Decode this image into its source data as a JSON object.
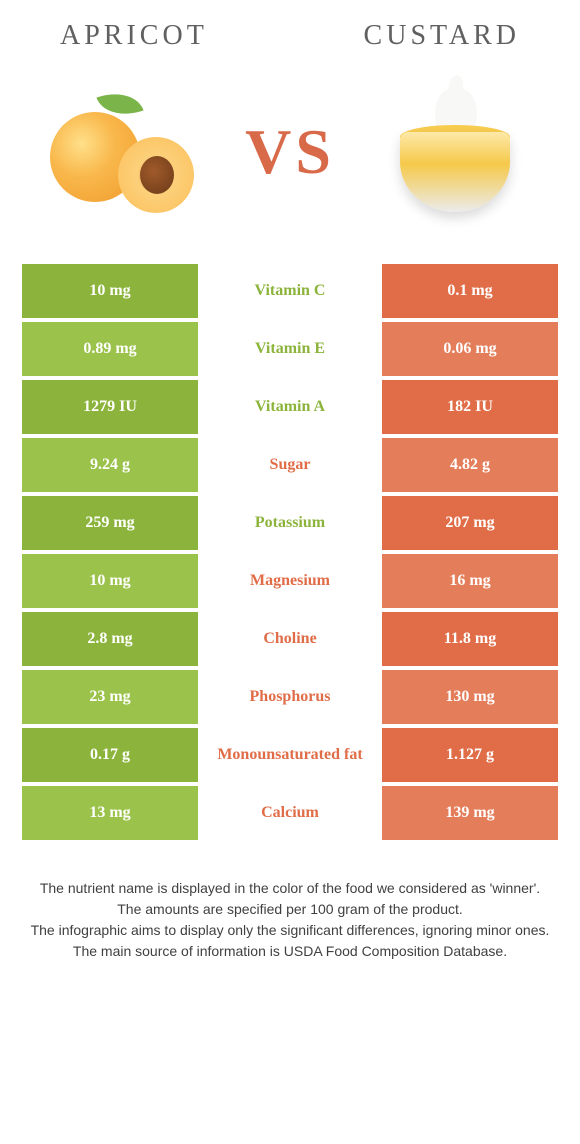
{
  "colors": {
    "left": "#8cb43c",
    "right": "#e06d48",
    "left_alt": "#9bc24a",
    "right_alt": "#e47d5a"
  },
  "header": {
    "left_title": "Apricot",
    "right_title": "Custard",
    "vs": "VS"
  },
  "rows": [
    {
      "label": "Vitamin C",
      "left": "10 mg",
      "right": "0.1 mg",
      "winner": "left"
    },
    {
      "label": "Vitamin E",
      "left": "0.89 mg",
      "right": "0.06 mg",
      "winner": "left"
    },
    {
      "label": "Vitamin A",
      "left": "1279 IU",
      "right": "182 IU",
      "winner": "left"
    },
    {
      "label": "Sugar",
      "left": "9.24 g",
      "right": "4.82 g",
      "winner": "right"
    },
    {
      "label": "Potassium",
      "left": "259 mg",
      "right": "207 mg",
      "winner": "left"
    },
    {
      "label": "Magnesium",
      "left": "10 mg",
      "right": "16 mg",
      "winner": "right"
    },
    {
      "label": "Choline",
      "left": "2.8 mg",
      "right": "11.8 mg",
      "winner": "right"
    },
    {
      "label": "Phosphorus",
      "left": "23 mg",
      "right": "130 mg",
      "winner": "right"
    },
    {
      "label": "Monounsaturated fat",
      "left": "0.17 g",
      "right": "1.127 g",
      "winner": "right"
    },
    {
      "label": "Calcium",
      "left": "13 mg",
      "right": "139 mg",
      "winner": "right"
    }
  ],
  "footer": [
    "The nutrient name is displayed in the color of the food we considered as 'winner'.",
    "The amounts are specified per 100 gram of the product.",
    "The infographic aims to display only the significant differences, ignoring minor ones.",
    "The main source of information is USDA Food Composition Database."
  ]
}
